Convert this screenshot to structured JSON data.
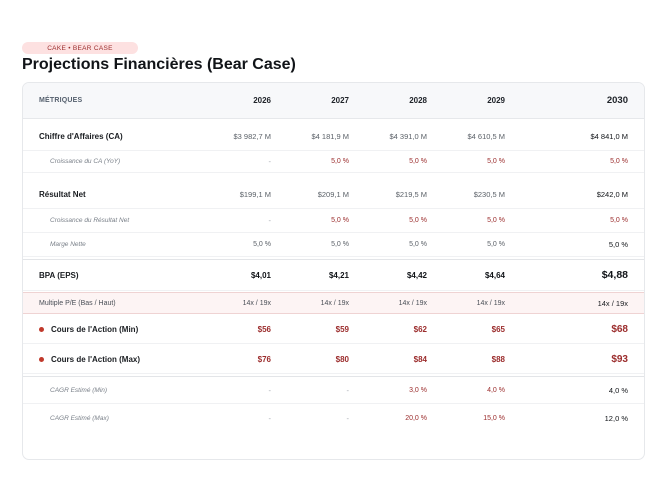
{
  "badge": "CAKE • BEAR CASE",
  "title": "Projections Financières (Bear Case)",
  "header": {
    "metric_label": "MÉTRIQUES",
    "years": [
      "2026",
      "2027",
      "2028",
      "2029",
      "2030"
    ]
  },
  "rows": [
    {
      "label": "Chiffre d'Affaires (CA)",
      "values": [
        "$3 982,7 M",
        "$4 181,9 M",
        "$4 391,0 M",
        "$4 610,5 M",
        "$4 841,0 M"
      ]
    },
    {
      "label": "Croissance du CA (YoY)",
      "values": [
        "-",
        "5,0 %",
        "5,0 %",
        "5,0 %",
        "5,0 %"
      ]
    },
    {
      "label": "Résultat Net",
      "values": [
        "$199,1 M",
        "$209,1 M",
        "$219,5 M",
        "$230,5 M",
        "$242,0 M"
      ]
    },
    {
      "label": "Croissance du Résultat Net",
      "values": [
        "-",
        "5,0 %",
        "5,0 %",
        "5,0 %",
        "5,0 %"
      ]
    },
    {
      "label": "Marge Nette",
      "values": [
        "5,0 %",
        "5,0 %",
        "5,0 %",
        "5,0 %",
        "5,0 %"
      ]
    },
    {
      "label": "BPA (EPS)",
      "values": [
        "$4,01",
        "$4,21",
        "$4,42",
        "$4,64",
        "$4,88"
      ]
    },
    {
      "label": "Multiple P/E (Bas / Haut)",
      "values": [
        "14x / 19x",
        "14x / 19x",
        "14x / 19x",
        "14x / 19x",
        "14x / 19x"
      ]
    },
    {
      "label": "Cours de l'Action (Min)",
      "values": [
        "$56",
        "$59",
        "$62",
        "$65",
        "$68"
      ]
    },
    {
      "label": "Cours de l'Action (Max)",
      "values": [
        "$76",
        "$80",
        "$84",
        "$88",
        "$93"
      ]
    },
    {
      "label": "CAGR Estimé (Min)",
      "values": [
        "-",
        "-",
        "3,0 %",
        "4,0 %",
        "4,0 %"
      ]
    },
    {
      "label": "CAGR Estimé (Max)",
      "values": [
        "-",
        "-",
        "20,0 %",
        "15,0 %",
        "12,0 %"
      ]
    }
  ],
  "colors": {
    "accent_red": "#9b2c2c",
    "badge_bg": "#fde1e1",
    "dot": "#c0392b"
  }
}
